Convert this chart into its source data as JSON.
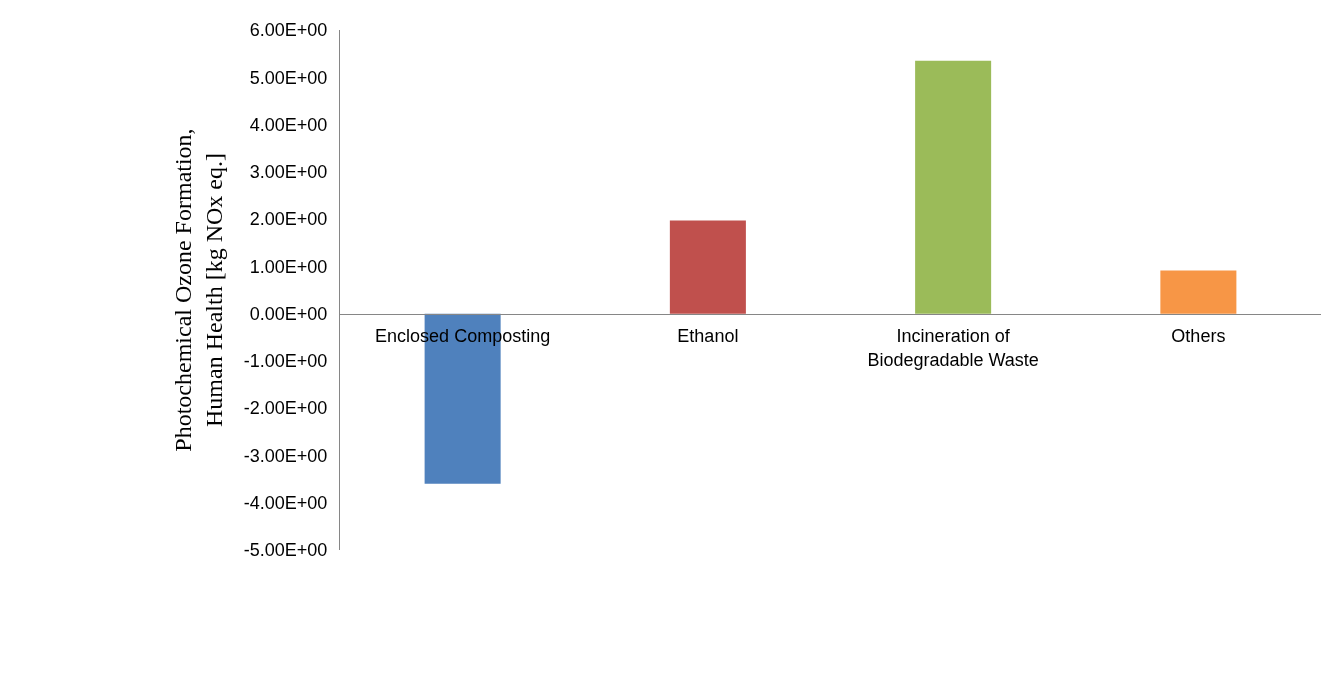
{
  "chart_data": {
    "type": "bar",
    "ylabel": "Photochemical Ozone Formation, Human Health [kg NOx eq.]",
    "categories": [
      "Enclosed Composting",
      "Ethanol",
      "Incineration of Biodegradable Waste",
      "Others"
    ],
    "values": [
      -3.6,
      1.97,
      5.35,
      0.91
    ],
    "colors": [
      "#4f81bd",
      "#c0504d",
      "#9bbb59",
      "#f79646"
    ],
    "ylim": [
      -5,
      6
    ],
    "yticks": [
      {
        "value": 6,
        "label": "6.00E+00"
      },
      {
        "value": 5,
        "label": "5.00E+00"
      },
      {
        "value": 4,
        "label": "4.00E+00"
      },
      {
        "value": 3,
        "label": "3.00E+00"
      },
      {
        "value": 2,
        "label": "2.00E+00"
      },
      {
        "value": 1,
        "label": "1.00E+00"
      },
      {
        "value": 0,
        "label": "0.00E+00"
      },
      {
        "value": -1,
        "label": "-1.00E+00"
      },
      {
        "value": -2,
        "label": "-2.00E+00"
      },
      {
        "value": -3,
        "label": "-3.00E+00"
      },
      {
        "value": -4,
        "label": "-4.00E+00"
      },
      {
        "value": -5,
        "label": "-5.00E+00"
      }
    ],
    "grid": false,
    "legend": false
  }
}
